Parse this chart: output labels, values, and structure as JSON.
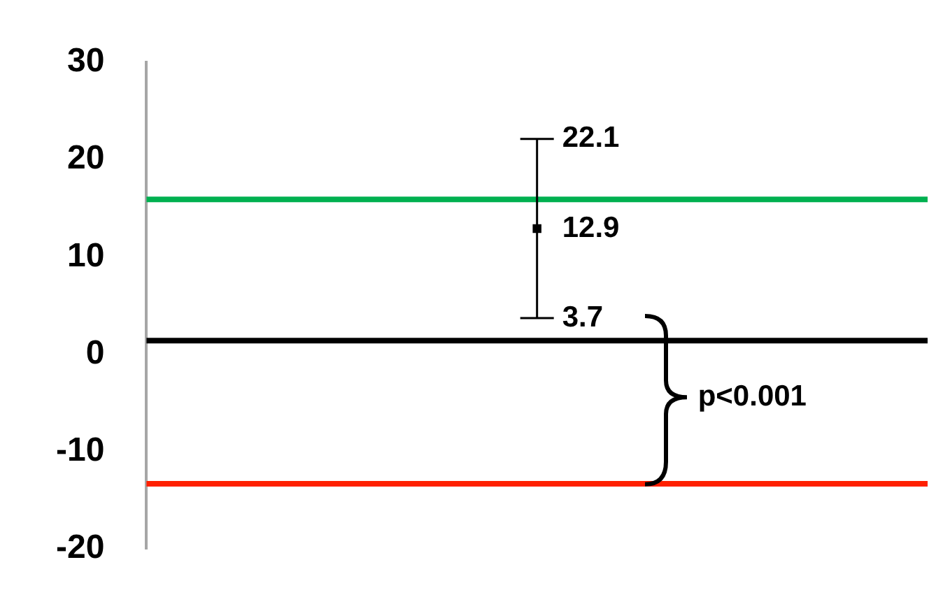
{
  "chart_data": {
    "type": "scatter",
    "categories": [
      null
    ],
    "series": [
      {
        "color": "#000000",
        "values": [
          12.9
        ],
        "errors": [
          [
            3.7,
            22.1
          ]
        ]
      }
    ],
    "ylim": [
      -20,
      30
    ],
    "yticks": [
      -20,
      -10,
      0,
      10,
      20,
      30
    ],
    "grid": false,
    "legend": false,
    "tick_labels": "y",
    "ref_lines": [
      {
        "axis": "y",
        "value": 15.9,
        "color": "#00b050"
      },
      {
        "axis": "y",
        "value": 1.4,
        "color": "#000000"
      },
      {
        "axis": "y",
        "value": -13.3,
        "color": "#ff2000"
      }
    ],
    "data_labels": true,
    "marker": "square",
    "annotations": [
      "22.1",
      "3.7",
      "p<0.001"
    ]
  }
}
